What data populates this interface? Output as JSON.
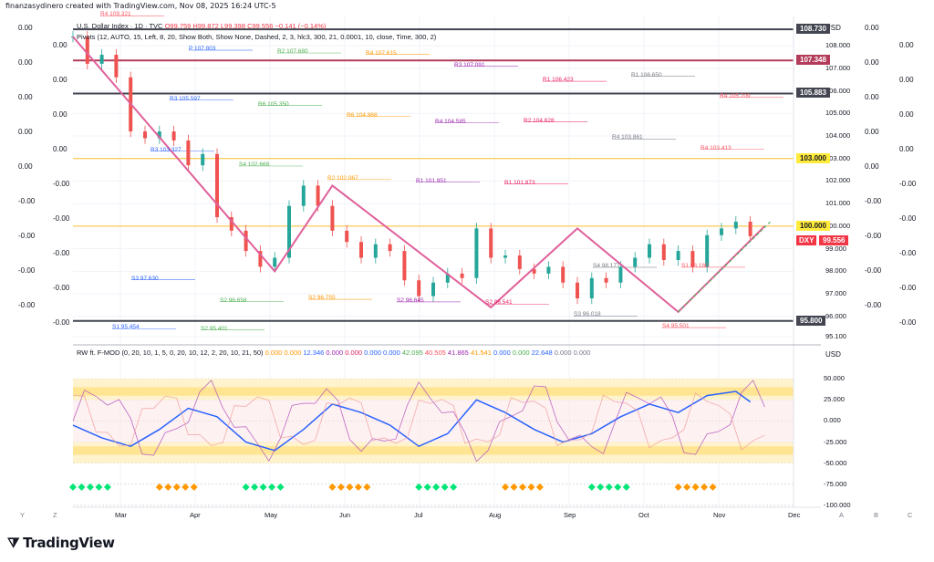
{
  "credit": "finanzasydinero created with TradingView.com, Nov 08, 2025 16:24 UTC-5",
  "legend": {
    "symbol": "U.S. Dollar Index · 1D · TVC",
    "ohlc": "O99.759 H99.872 L99.398 C99.556 −0.141 (−0.14%)",
    "pivots": "Pivots (12, AUTO, 15, Left, 8, 20, Show Both, Show None, Dashed, 2, 3, hlc3, 300, 21, 0.0001, 10, close, Time, 300, 2)",
    "osc": "RW ft. F-MOD (0, 20, 10, 1, 5, 0, 20, 10, 12, 2, 20, 10, 21, 50)",
    "osc_values": [
      "0.000",
      "0.000",
      "12.346",
      "0.000",
      "0.000",
      "0.000",
      "0.000",
      "42.095",
      "40.505",
      "41.865",
      "41.541",
      "0.000",
      "0.000",
      "22.648",
      "0.000",
      "0.000"
    ]
  },
  "currency": "USD",
  "currency2": "USD",
  "last_price": {
    "symbol": "DXY",
    "value": "99.556"
  },
  "price_tags": [
    {
      "label": "108.730",
      "color": "#434651"
    },
    {
      "label": "107.348",
      "color": "#b23c5a"
    },
    {
      "label": "105.883",
      "color": "#434651"
    },
    {
      "label": "103.000",
      "color": "#ffeb3b",
      "text": "#131722"
    },
    {
      "label": "100.000",
      "color": "#ffeb3b",
      "text": "#131722"
    },
    {
      "label": "95.800",
      "color": "#434651"
    }
  ],
  "chart_data": {
    "type": "line",
    "title": "U.S. Dollar Index · 1D · TVC",
    "xlabel": "",
    "ylabel": "USD",
    "ylim": [
      94.9,
      109.3
    ],
    "price_ticks": [
      "108.000",
      "107.000",
      "106.000",
      "105.000",
      "104.000",
      "103.000",
      "102.000",
      "101.000",
      "100.000",
      "99.000",
      "98.000",
      "97.000",
      "96.000",
      "95.100"
    ],
    "x_ticks": [
      "Mar",
      "Apr",
      "May",
      "Jun",
      "Jul",
      "Aug",
      "Sep",
      "Oct",
      "Nov",
      "Dec"
    ],
    "series": [
      {
        "name": "DXY close",
        "color": "#26a69a",
        "x": [
          0,
          5,
          10,
          15,
          20,
          25,
          30,
          35,
          40,
          45,
          50,
          55,
          60,
          65,
          70,
          75,
          80,
          85,
          90,
          95,
          100,
          105,
          110,
          115,
          120,
          125,
          130,
          135,
          140,
          145,
          150,
          155,
          160,
          165,
          170,
          175,
          180,
          185,
          190,
          195,
          200,
          205,
          210,
          215,
          220,
          225,
          230,
          235
        ],
        "values": [
          108.4,
          107.2,
          107.6,
          106.6,
          104.2,
          103.9,
          104.2,
          103.8,
          102.7,
          103.2,
          100.4,
          99.8,
          98.9,
          98.2,
          98.6,
          100.9,
          101.8,
          100.9,
          99.8,
          99.3,
          98.6,
          99.2,
          98.9,
          97.6,
          96.9,
          97.5,
          97.9,
          97.7,
          99.9,
          98.6,
          98.7,
          98.1,
          97.9,
          98.2,
          97.5,
          96.8,
          97.7,
          97.5,
          98.2,
          98.6,
          99.2,
          98.5,
          98.9,
          98.2,
          99.6,
          99.9,
          100.2,
          99.556
        ]
      },
      {
        "name": "Oscillator",
        "color": "#2962ff",
        "x": [
          0,
          10,
          20,
          30,
          40,
          50,
          60,
          70,
          80,
          90,
          100,
          110,
          120,
          130,
          140,
          150,
          160,
          170,
          180,
          190,
          200,
          210,
          220,
          230,
          235
        ],
        "values": [
          -5,
          -20,
          -30,
          -10,
          15,
          5,
          -25,
          -35,
          -10,
          20,
          10,
          -5,
          -30,
          -15,
          25,
          10,
          -10,
          -25,
          -15,
          5,
          20,
          10,
          30,
          35,
          22.648
        ]
      }
    ],
    "osc_ticks": [
      "50.000",
      "25.000",
      "0.000",
      "-25.000",
      "-50.000",
      "-75.000",
      "-100.000"
    ],
    "osc_ylim": [
      -100,
      75
    ]
  },
  "pivot_labels": [
    {
      "text": "R4 109.321"
    },
    {
      "text": "P 107.803"
    },
    {
      "text": "R2 107.680"
    },
    {
      "text": "R4 107.615"
    },
    {
      "text": "R3 107.091"
    },
    {
      "text": "R1 106.423"
    },
    {
      "text": "R1 106.650"
    },
    {
      "text": "R4 105.709"
    },
    {
      "text": "R3 105.597"
    },
    {
      "text": "R6 105.350"
    },
    {
      "text": "R6 104.868"
    },
    {
      "text": "R4 104.585"
    },
    {
      "text": "R2 104.628"
    },
    {
      "text": "R4 103.861"
    },
    {
      "text": "R4 103.413"
    },
    {
      "text": "R3 103.327"
    },
    {
      "text": "S4 102.668"
    },
    {
      "text": "R2 102.067"
    },
    {
      "text": "R1 101.951"
    },
    {
      "text": "R1 101.873"
    },
    {
      "text": "S4 98.177"
    },
    {
      "text": "S1 98.180"
    },
    {
      "text": "S3 97.630"
    },
    {
      "text": "S2 96.658"
    },
    {
      "text": "S2 96.755"
    },
    {
      "text": "S2 96.645"
    },
    {
      "text": "S2 96.541"
    },
    {
      "text": "S3 96.018"
    },
    {
      "text": "S4 95.501"
    },
    {
      "text": "S1 95.454"
    },
    {
      "text": "S2 95.401"
    }
  ],
  "left_labels": [
    "0.00",
    "0.00",
    "0.00",
    "0.00",
    "0.00",
    "0.00",
    "0.00",
    "0.00",
    "0.00",
    "-0.00",
    "-0.00",
    "-0.00",
    "-0.00",
    "-0.00",
    "-0.00",
    "-0.00",
    "-0.00",
    "-0.00"
  ],
  "right_labels": [
    "0.00",
    "0.00",
    "0.00",
    "0.00",
    "0.00",
    "0.00",
    "0.00",
    "0.00",
    "0.00",
    "-0.00",
    "-0.00",
    "-0.00",
    "-0.00",
    "-0.00",
    "-0.00",
    "-0.00",
    "-0.00",
    "-0.00"
  ],
  "bottom_letters": {
    "left": "Y",
    "left2": "Z",
    "right": [
      "A",
      "B",
      "C"
    ]
  },
  "brand": "TradingView"
}
